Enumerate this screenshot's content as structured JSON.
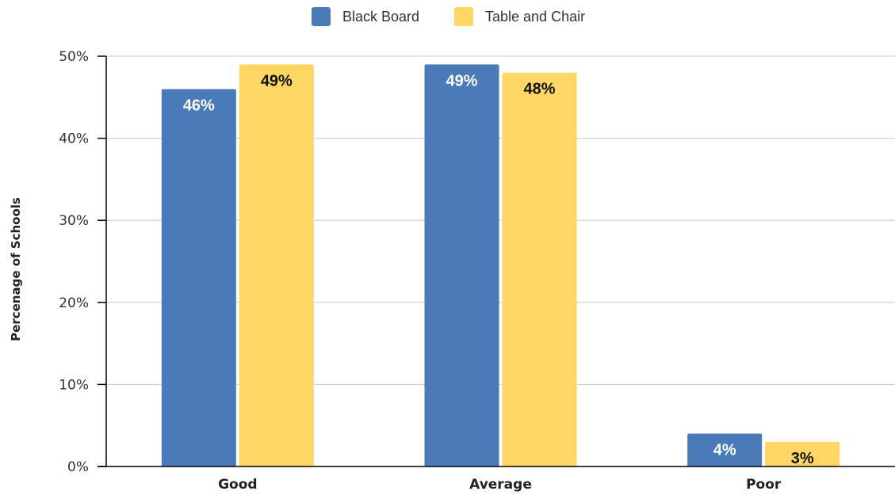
{
  "chart_data": {
    "type": "bar",
    "title": "",
    "xlabel": "",
    "ylabel": "Percenage of Schools",
    "categories": [
      "Good",
      "Average",
      "Poor"
    ],
    "series": [
      {
        "name": "Black Board",
        "color": "#4a7ab8",
        "label_color": "#ffffff",
        "values": [
          46,
          49,
          4
        ],
        "labels": [
          "46%",
          "49%",
          "4%"
        ]
      },
      {
        "name": "Table and Chair",
        "color": "#fdd663",
        "label_color": "#111111",
        "values": [
          49,
          48,
          3
        ],
        "labels": [
          "49%",
          "48%",
          "3%"
        ]
      }
    ],
    "ylim": [
      0,
      50
    ],
    "yticks": [
      0,
      10,
      20,
      30,
      40,
      50
    ],
    "ytick_labels": [
      "0%",
      "10%",
      "20%",
      "30%",
      "40%",
      "50%"
    ],
    "grid": true,
    "legend_position": "top-center"
  }
}
